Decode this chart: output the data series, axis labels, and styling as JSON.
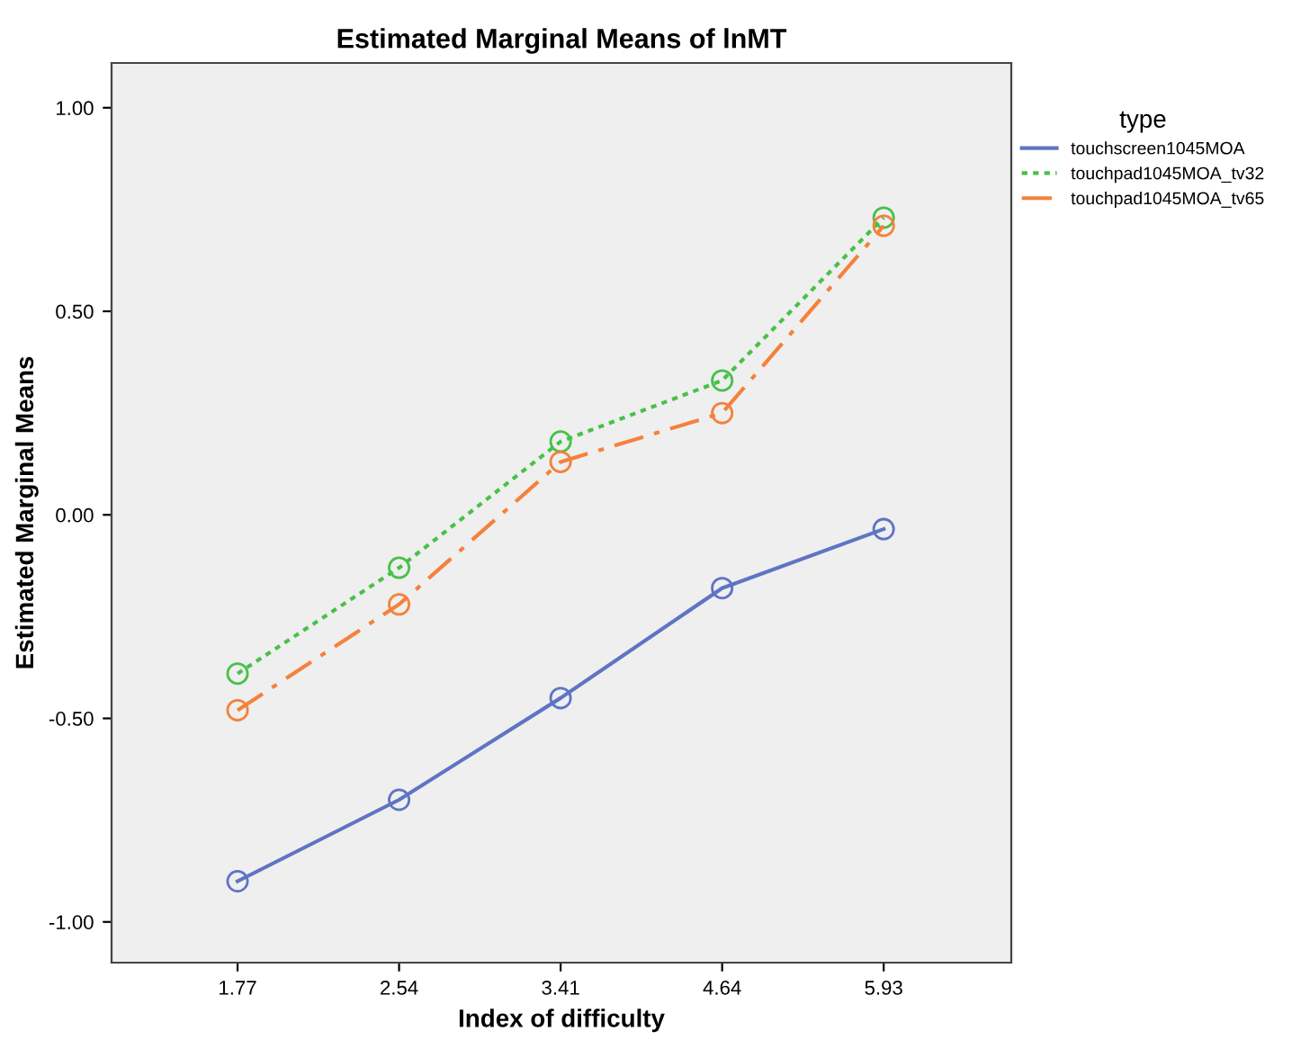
{
  "chart_data": {
    "type": "line",
    "title": "Estimated Marginal Means of lnMT",
    "xlabel": "Index of difficulty",
    "ylabel": "Estimated Marginal Means",
    "legend_title": "type",
    "categories": [
      "1.77",
      "2.54",
      "3.41",
      "4.64",
      "5.93"
    ],
    "series": [
      {
        "name": "touchscreen1045MOA",
        "color": "#5f74c4",
        "line_style": "solid",
        "values": [
          -0.9,
          -0.7,
          -0.45,
          -0.18,
          -0.035
        ]
      },
      {
        "name": "touchpad1045MOA_tv32",
        "color": "#49c04a",
        "line_style": "dotted",
        "values": [
          -0.39,
          -0.13,
          0.18,
          0.33,
          0.73
        ]
      },
      {
        "name": "touchpad1045MOA_tv65",
        "color": "#f5813c",
        "line_style": "dashdot",
        "values": [
          -0.48,
          -0.22,
          0.13,
          0.25,
          0.71
        ]
      }
    ],
    "ylim": [
      -1.1,
      1.11
    ],
    "yticks": [
      {
        "value": -1,
        "label": "-1.00"
      },
      {
        "value": -0.5,
        "label": "-0.50"
      },
      {
        "value": 0,
        "label": "0.00"
      },
      {
        "value": 0.5,
        "label": "0.50"
      },
      {
        "value": 1,
        "label": "1.00"
      }
    ],
    "marker": "circle",
    "grid": false,
    "legend": "top right"
  }
}
